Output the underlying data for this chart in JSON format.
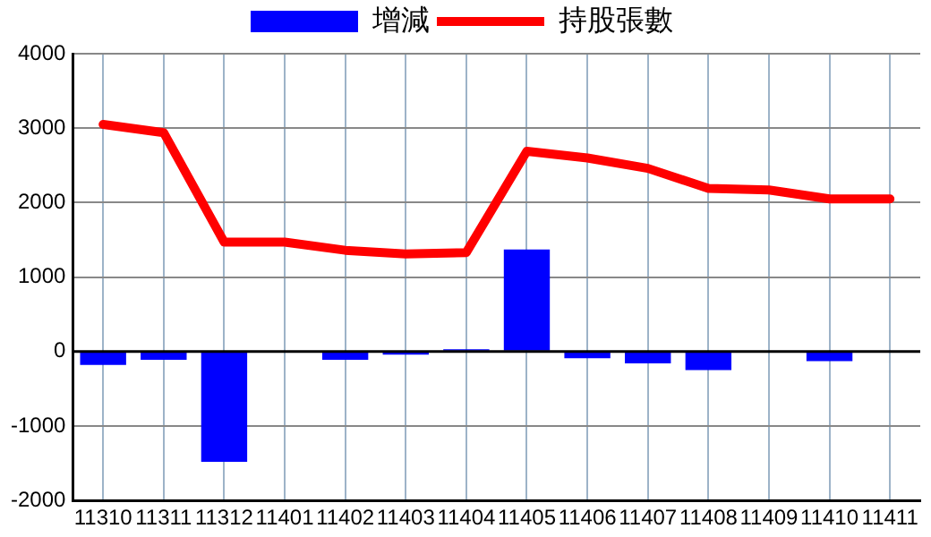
{
  "chart_data": {
    "type": "bar",
    "categories": [
      "11310",
      "11311",
      "11312",
      "11401",
      "11402",
      "11403",
      "11404",
      "11405",
      "11406",
      "11407",
      "11408",
      "11409",
      "11410",
      "11411"
    ],
    "series": [
      {
        "name": "增減",
        "color": "#0000ff",
        "values": [
          -180,
          -110,
          -1480,
          0,
          -110,
          -40,
          30,
          1370,
          -90,
          -160,
          -250,
          0,
          -130,
          0
        ]
      },
      {
        "name": "持股張數",
        "type": "line",
        "color": "#ff0000",
        "values": [
          3050,
          2940,
          1470,
          1470,
          1360,
          1310,
          1330,
          2690,
          2600,
          2460,
          2190,
          2170,
          2050,
          2050
        ]
      }
    ],
    "ylim": [
      -2000,
      4000
    ],
    "yticks": [
      -2000,
      -1000,
      0,
      1000,
      2000,
      3000,
      4000
    ],
    "grid": true,
    "legend": "top",
    "marker": "none"
  }
}
